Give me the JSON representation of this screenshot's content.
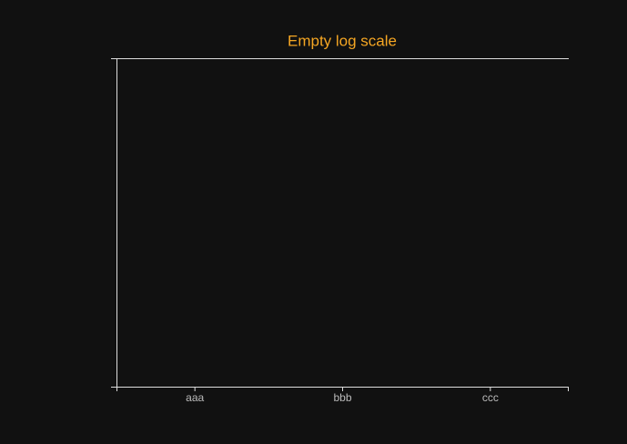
{
  "chart_data": {
    "type": "bar",
    "title": "Empty log scale",
    "categories": [
      "aaa",
      "bbb",
      "ccc"
    ],
    "values": [
      null,
      null,
      null
    ],
    "color": "#4a90c8",
    "log_scale": true
  }
}
